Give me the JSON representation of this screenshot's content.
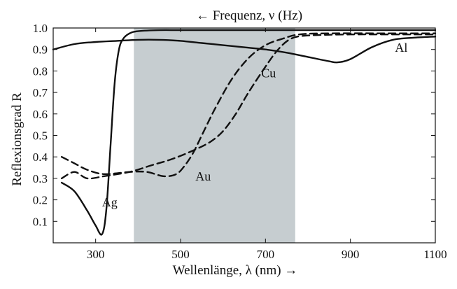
{
  "chart_data": {
    "type": "line",
    "top_axis_label": "← Frequenz, ν (Hz)",
    "xlabel": "Wellenlänge, λ (nm) →",
    "ylabel": "Reflexionsgrad R",
    "xlim": [
      200,
      1100
    ],
    "ylim": [
      0.0,
      1.0
    ],
    "x_ticks": [
      300,
      500,
      700,
      900,
      1100
    ],
    "x_tick_labels": [
      "300",
      "500",
      "700",
      "900",
      "1100"
    ],
    "y_ticks": [
      0.1,
      0.2,
      0.3,
      0.4,
      0.5,
      0.6,
      0.7,
      0.8,
      0.9,
      1.0
    ],
    "y_tick_labels": [
      "0.1",
      "0.2",
      "0.3",
      "0.4",
      "0.5",
      "0.6",
      "0.7",
      "0.8",
      "0.9",
      "1.0"
    ],
    "visible_band": [
      390,
      770
    ],
    "grid": false,
    "series": [
      {
        "name": "Al",
        "style": "solid",
        "x": [
          200,
          250,
          300,
          350,
          400,
          450,
          500,
          550,
          600,
          650,
          700,
          750,
          800,
          850,
          870,
          900,
          950,
          1000,
          1050,
          1100
        ],
        "y": [
          0.9,
          0.925,
          0.935,
          0.94,
          0.945,
          0.945,
          0.94,
          0.93,
          0.92,
          0.91,
          0.9,
          0.885,
          0.865,
          0.845,
          0.84,
          0.855,
          0.91,
          0.945,
          0.955,
          0.96
        ]
      },
      {
        "name": "Ag",
        "style": "solid",
        "x": [
          220,
          250,
          280,
          300,
          315,
          325,
          335,
          345,
          355,
          365,
          380,
          400,
          450,
          500,
          600,
          700,
          800,
          1100
        ],
        "y": [
          0.28,
          0.24,
          0.15,
          0.08,
          0.04,
          0.15,
          0.45,
          0.75,
          0.9,
          0.95,
          0.975,
          0.985,
          0.99,
          0.99,
          0.99,
          0.99,
          0.99,
          0.99
        ]
      },
      {
        "name": "Au",
        "style": "dashed",
        "x": [
          220,
          250,
          280,
          320,
          380,
          420,
          460,
          490,
          510,
          530,
          550,
          580,
          620,
          660,
          700,
          740,
          780,
          850,
          1000,
          1100
        ],
        "y": [
          0.4,
          0.37,
          0.34,
          0.32,
          0.33,
          0.33,
          0.31,
          0.32,
          0.36,
          0.42,
          0.5,
          0.62,
          0.76,
          0.86,
          0.92,
          0.95,
          0.97,
          0.975,
          0.975,
          0.975
        ]
      },
      {
        "name": "Cu",
        "style": "dashed",
        "x": [
          220,
          250,
          280,
          320,
          380,
          430,
          480,
          530,
          570,
          600,
          630,
          660,
          700,
          730,
          760,
          800,
          900,
          1000,
          1100
        ],
        "y": [
          0.3,
          0.33,
          0.3,
          0.31,
          0.33,
          0.36,
          0.39,
          0.43,
          0.47,
          0.52,
          0.6,
          0.7,
          0.82,
          0.9,
          0.95,
          0.965,
          0.97,
          0.97,
          0.97
        ]
      }
    ],
    "annotations": [
      {
        "text": "Al",
        "x": 1005,
        "y": 0.89
      },
      {
        "text": "Ag",
        "x": 315,
        "y": 0.17
      },
      {
        "text": "Au",
        "x": 535,
        "y": 0.29
      },
      {
        "text": "Cu",
        "x": 690,
        "y": 0.77
      }
    ]
  }
}
